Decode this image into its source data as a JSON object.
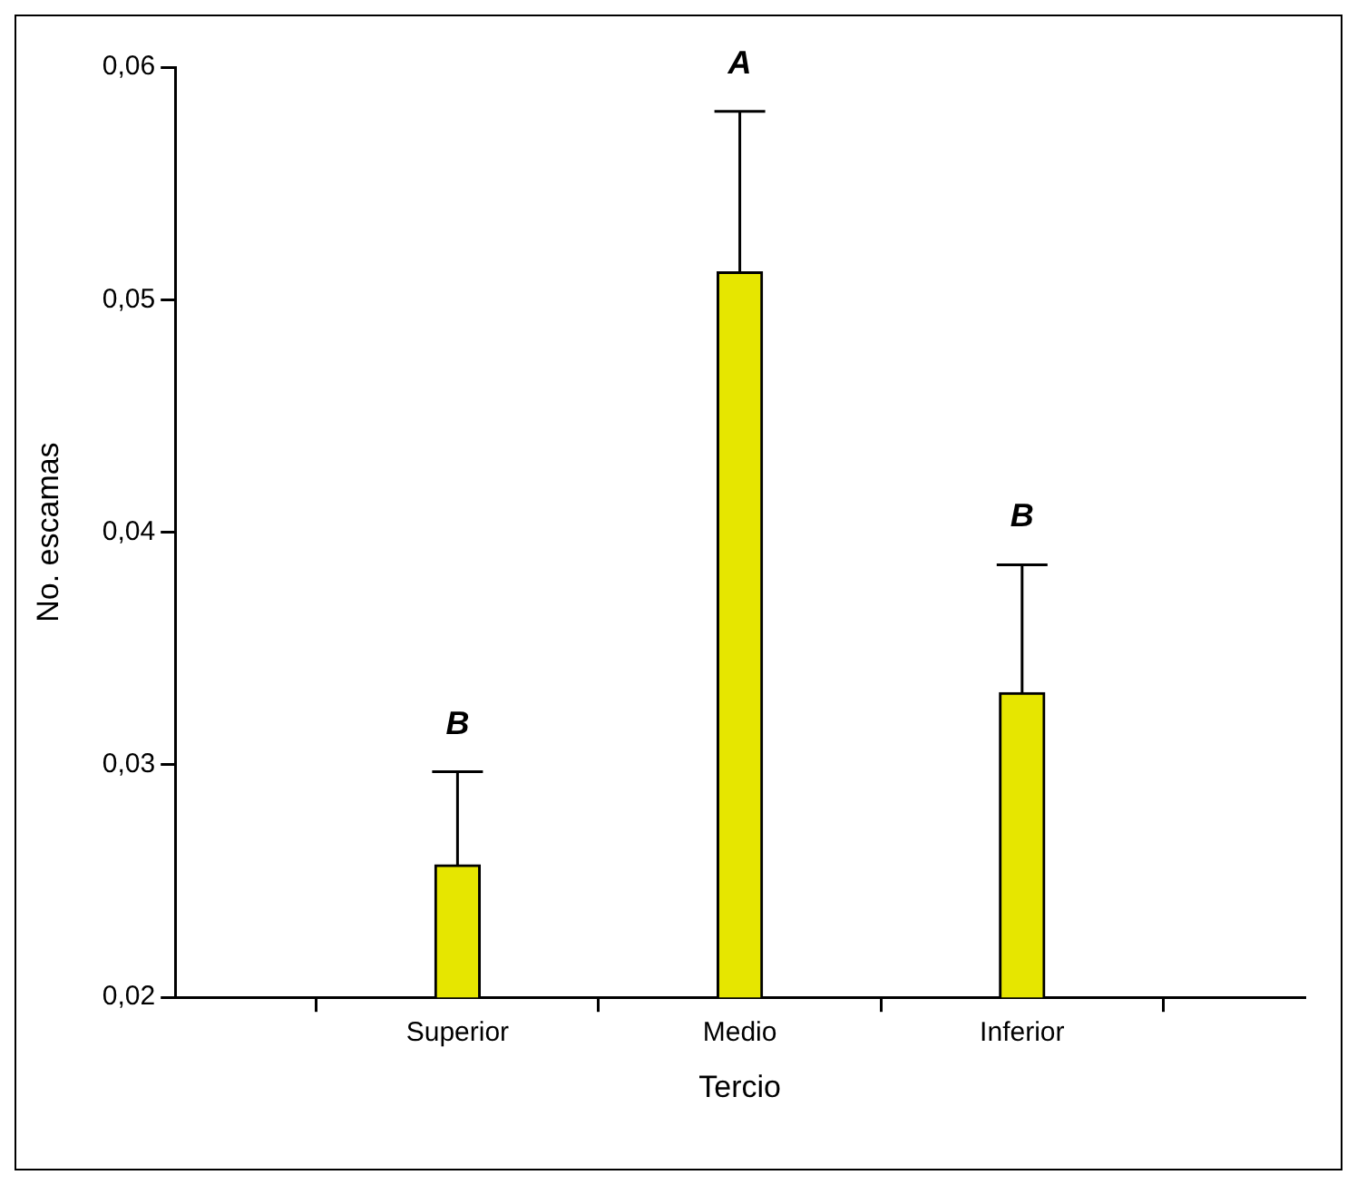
{
  "chart_data": {
    "type": "bar",
    "xlabel": "Tercio",
    "ylabel": "No. escamas",
    "categories": [
      "Superior",
      "Medio",
      "Inferior"
    ],
    "values": [
      0.0257,
      0.0512,
      0.0331
    ],
    "errors": [
      [
        0.0257,
        0.0297
      ],
      [
        0.0512,
        0.0581
      ],
      [
        0.0331,
        0.0386
      ]
    ],
    "color": "#e6e600",
    "ylim": [
      0.02,
      0.06
    ],
    "yticks": [
      {
        "value": 0.02,
        "label": "0,02"
      },
      {
        "value": 0.03,
        "label": "0,03"
      },
      {
        "value": 0.04,
        "label": "0,04"
      },
      {
        "value": 0.05,
        "label": "0,05"
      },
      {
        "value": 0.06,
        "label": "0,06"
      }
    ],
    "grid": false,
    "legend": false,
    "annotations": [
      {
        "text": "B",
        "x": "Superior",
        "y": 0.0297
      },
      {
        "text": "A",
        "x": "Medio",
        "y": 0.0581
      },
      {
        "text": "B",
        "x": "Inferior",
        "y": 0.0386
      }
    ]
  }
}
